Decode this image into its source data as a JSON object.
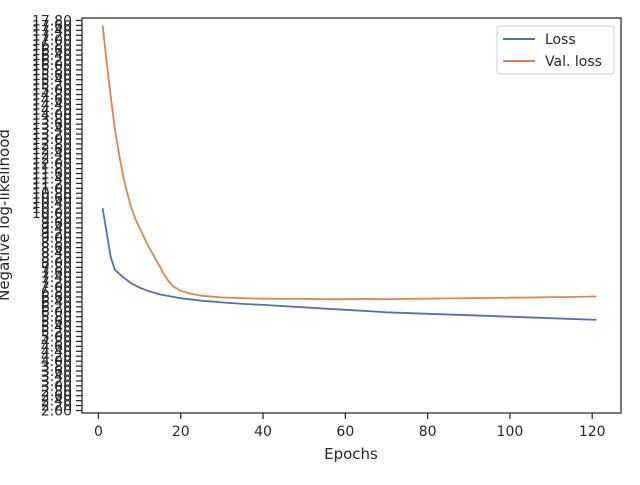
{
  "chart_data": {
    "type": "line",
    "xlabel": "Epochs",
    "ylabel": "Negative log-likelihood",
    "xlim": [
      -4,
      127
    ],
    "ylim": [
      1.9,
      17.9
    ],
    "x_ticks": [
      0,
      20,
      40,
      60,
      80,
      100,
      120
    ],
    "x_tick_labels": [
      "0",
      "20",
      "40",
      "60",
      "80",
      "100",
      "120"
    ],
    "y_tick_labels_legible": [
      "2.00",
      "2.20",
      "2.40",
      "2.60",
      "2.80",
      "3.00"
    ],
    "y_ticks_legible": [
      2.0,
      2.2,
      2.4,
      2.6,
      2.8,
      3.0
    ],
    "y_overlapping_tick_labels_start": 3.2,
    "y_overlapping_tick_labels_step": 0.2,
    "legend": {
      "position": "top-right",
      "entries": [
        "Loss",
        "Val. loss"
      ]
    },
    "grid": false,
    "series": [
      {
        "name": "Loss",
        "color": "#4c72b0",
        "x": [
          1,
          3,
          4,
          6,
          8,
          10,
          12,
          15,
          20,
          25,
          30,
          35,
          40,
          45,
          50,
          55,
          60,
          65,
          70,
          80,
          90,
          100,
          110,
          121
        ],
        "y": [
          10.2,
          8.2,
          7.7,
          7.4,
          7.15,
          6.98,
          6.85,
          6.7,
          6.55,
          6.45,
          6.38,
          6.32,
          6.28,
          6.23,
          6.18,
          6.13,
          6.08,
          6.03,
          5.98,
          5.92,
          5.86,
          5.8,
          5.74,
          5.67
        ]
      },
      {
        "name": "Val. loss",
        "color": "#dd8452",
        "x": [
          1,
          2,
          3,
          4,
          5,
          6,
          7,
          8,
          9,
          10,
          11,
          12,
          13,
          14,
          15,
          16,
          17,
          18,
          20,
          22,
          25,
          30,
          35,
          40,
          45,
          50,
          55,
          60,
          65,
          70,
          75,
          80,
          85,
          90,
          95,
          100,
          105,
          110,
          115,
          120,
          121
        ],
        "y": [
          17.6,
          16.1,
          14.7,
          13.4,
          12.4,
          11.5,
          10.8,
          10.2,
          9.75,
          9.4,
          9.05,
          8.7,
          8.4,
          8.1,
          7.8,
          7.5,
          7.25,
          7.05,
          6.85,
          6.75,
          6.65,
          6.58,
          6.55,
          6.53,
          6.52,
          6.52,
          6.51,
          6.51,
          6.52,
          6.51,
          6.52,
          6.53,
          6.54,
          6.55,
          6.56,
          6.57,
          6.58,
          6.59,
          6.6,
          6.62,
          6.62
        ]
      }
    ]
  }
}
